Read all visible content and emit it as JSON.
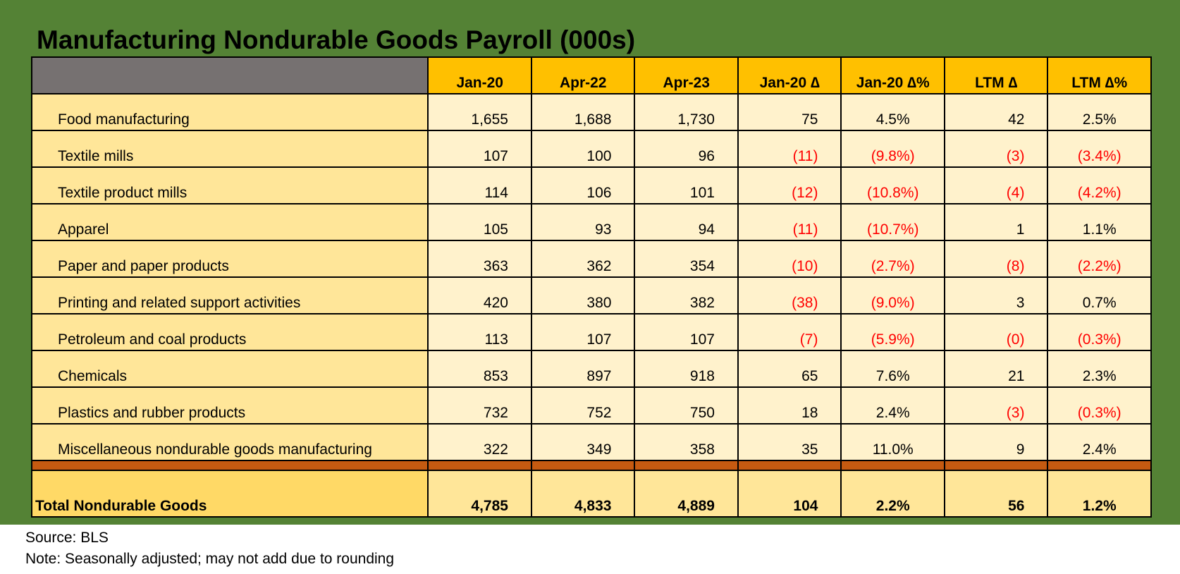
{
  "title": "Manufacturing Nondurable Goods Payroll (000s)",
  "columns": [
    "",
    "Jan-20",
    "Apr-22",
    "Apr-23",
    "Jan-20 ∆",
    "Jan-20 ∆%",
    "LTM ∆",
    "LTM ∆%"
  ],
  "rows": [
    {
      "label": "Food manufacturing",
      "cells": [
        "1,655",
        "1,688",
        "1,730",
        "75",
        "4.5%",
        "42",
        "2.5%"
      ]
    },
    {
      "label": "Textile mills",
      "cells": [
        "107",
        "100",
        "96",
        "(11)",
        "(9.8%)",
        "(3)",
        "(3.4%)"
      ]
    },
    {
      "label": "Textile product mills",
      "cells": [
        "114",
        "106",
        "101",
        "(12)",
        "(10.8%)",
        "(4)",
        "(4.2%)"
      ]
    },
    {
      "label": "Apparel",
      "cells": [
        "105",
        "93",
        "94",
        "(11)",
        "(10.7%)",
        "1",
        "1.1%"
      ]
    },
    {
      "label": "Paper and paper products",
      "cells": [
        "363",
        "362",
        "354",
        "(10)",
        "(2.7%)",
        "(8)",
        "(2.2%)"
      ]
    },
    {
      "label": "Printing and related support activities",
      "cells": [
        "420",
        "380",
        "382",
        "(38)",
        "(9.0%)",
        "3",
        "0.7%"
      ]
    },
    {
      "label": "Petroleum and coal products",
      "cells": [
        "113",
        "107",
        "107",
        "(7)",
        "(5.9%)",
        "(0)",
        "(0.3%)"
      ]
    },
    {
      "label": "Chemicals",
      "cells": [
        "853",
        "897",
        "918",
        "65",
        "7.6%",
        "21",
        "2.3%"
      ]
    },
    {
      "label": "Plastics and rubber products",
      "cells": [
        "732",
        "752",
        "750",
        "18",
        "2.4%",
        "(3)",
        "(0.3%)"
      ]
    },
    {
      "label": "Miscellaneous nondurable goods manufacturing",
      "cells": [
        "322",
        "349",
        "358",
        "35",
        "11.0%",
        "9",
        "2.4%"
      ]
    }
  ],
  "total": {
    "label": "Total Nondurable Goods",
    "cells": [
      "4,785",
      "4,833",
      "4,889",
      "104",
      "2.2%",
      "56",
      "1.2%"
    ]
  },
  "source": "Source: BLS",
  "note": "Note: Seasonally adjusted; may not add due to rounding",
  "colors": {
    "frame": "#548235",
    "header": "#ffc000",
    "corner": "#767171",
    "label_fill": "#ffe699",
    "cell_fill": "#fff2cc",
    "divider": "#c55a11",
    "negative": "#ff0000"
  }
}
